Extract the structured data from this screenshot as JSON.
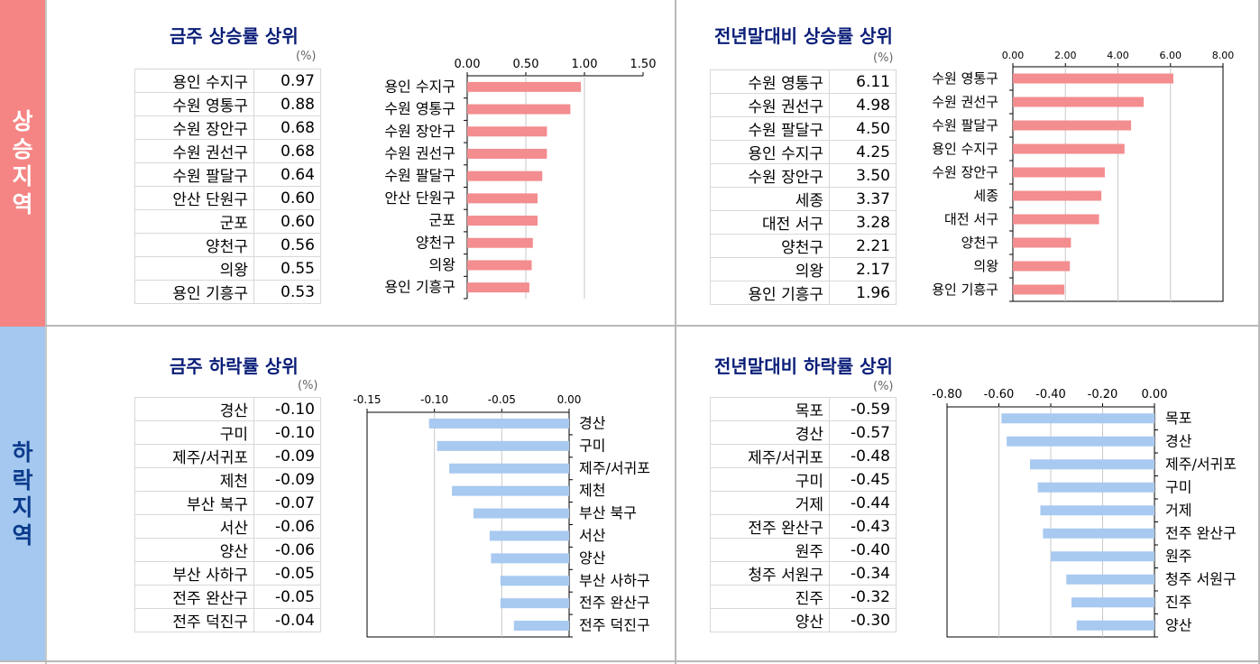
{
  "sections": {
    "rise": [
      "상",
      "승",
      "지",
      "역"
    ],
    "fall": [
      "하",
      "락",
      "지",
      "역"
    ]
  },
  "unit": "(%)",
  "colors": {
    "rise": "#f38d8f",
    "fall": "#a8c9f0",
    "title": "#0a1e78"
  },
  "chart_data": [
    {
      "id": "weekly_rise",
      "type": "bar",
      "orientation": "horizontal",
      "title": "금주 상승률 상위",
      "unit": "(%)",
      "categories": [
        "용인 수지구",
        "수원 영통구",
        "수원 장안구",
        "수원 권선구",
        "수원 팔달구",
        "안산 단원구",
        "군포",
        "양천구",
        "의왕",
        "용인 기흥구"
      ],
      "values": [
        0.97,
        0.88,
        0.68,
        0.68,
        0.64,
        0.6,
        0.6,
        0.56,
        0.55,
        0.53
      ],
      "labels": [
        "0.97",
        "0.88",
        "0.68",
        "0.68",
        "0.64",
        "0.60",
        "0.60",
        "0.56",
        "0.55",
        "0.53"
      ],
      "xlim": [
        0,
        1.5
      ],
      "ticks": [
        0,
        0.5,
        1.0,
        1.5
      ],
      "tick_labels": [
        "0.00",
        "0.50",
        "1.00",
        "1.50"
      ]
    },
    {
      "id": "ytd_rise",
      "type": "bar",
      "orientation": "horizontal",
      "title": "전년말대비 상승률 상위",
      "unit": "(%)",
      "categories": [
        "수원 영통구",
        "수원 권선구",
        "수원 팔달구",
        "용인 수지구",
        "수원 장안구",
        "세종",
        "대전 서구",
        "양천구",
        "의왕",
        "용인 기흥구"
      ],
      "values": [
        6.11,
        4.98,
        4.5,
        4.25,
        3.5,
        3.37,
        3.28,
        2.21,
        2.17,
        1.96
      ],
      "labels": [
        "6.11",
        "4.98",
        "4.50",
        "4.25",
        "3.50",
        "3.37",
        "3.28",
        "2.21",
        "2.17",
        "1.96"
      ],
      "xlim": [
        0,
        8
      ],
      "ticks": [
        0,
        2,
        4,
        6,
        8
      ],
      "tick_labels": [
        "0.00",
        "2.00",
        "4.00",
        "6.00",
        "8.00"
      ]
    },
    {
      "id": "weekly_fall",
      "type": "bar",
      "orientation": "horizontal",
      "title": "금주 하락률 상위",
      "unit": "(%)",
      "categories": [
        "경산",
        "구미",
        "제주/서귀포",
        "제천",
        "부산 북구",
        "서산",
        "양산",
        "부산 사하구",
        "전주 완산구",
        "전주 덕진구"
      ],
      "values": [
        -0.1,
        -0.1,
        -0.09,
        -0.09,
        -0.07,
        -0.06,
        -0.06,
        -0.05,
        -0.05,
        -0.04
      ],
      "labels": [
        "-0.10",
        "-0.10",
        "-0.09",
        "-0.09",
        "-0.07",
        "-0.06",
        "-0.06",
        "-0.05",
        "-0.05",
        "-0.04"
      ],
      "plot_values": [
        -0.104,
        -0.098,
        -0.089,
        -0.087,
        -0.071,
        -0.059,
        -0.058,
        -0.051,
        -0.051,
        -0.041
      ],
      "xlim": [
        -0.15,
        0
      ],
      "ticks": [
        -0.15,
        -0.1,
        -0.05,
        0
      ],
      "tick_labels": [
        "-0.15",
        "-0.10",
        "-0.05",
        "0.00"
      ]
    },
    {
      "id": "ytd_fall",
      "type": "bar",
      "orientation": "horizontal",
      "title": "전년말대비 하락률 상위",
      "unit": "(%)",
      "categories": [
        "목포",
        "경산",
        "제주/서귀포",
        "구미",
        "거제",
        "전주 완산구",
        "원주",
        "청주 서원구",
        "진주",
        "양산"
      ],
      "values": [
        -0.59,
        -0.57,
        -0.48,
        -0.45,
        -0.44,
        -0.43,
        -0.4,
        -0.34,
        -0.32,
        -0.3
      ],
      "labels": [
        "-0.59",
        "-0.57",
        "-0.48",
        "-0.45",
        "-0.44",
        "-0.43",
        "-0.40",
        "-0.34",
        "-0.32",
        "-0.30"
      ],
      "xlim": [
        -0.8,
        0
      ],
      "ticks": [
        -0.8,
        -0.6,
        -0.4,
        -0.2,
        0
      ],
      "tick_labels": [
        "-0.80",
        "-0.60",
        "-0.40",
        "-0.20",
        "0.00"
      ]
    }
  ]
}
